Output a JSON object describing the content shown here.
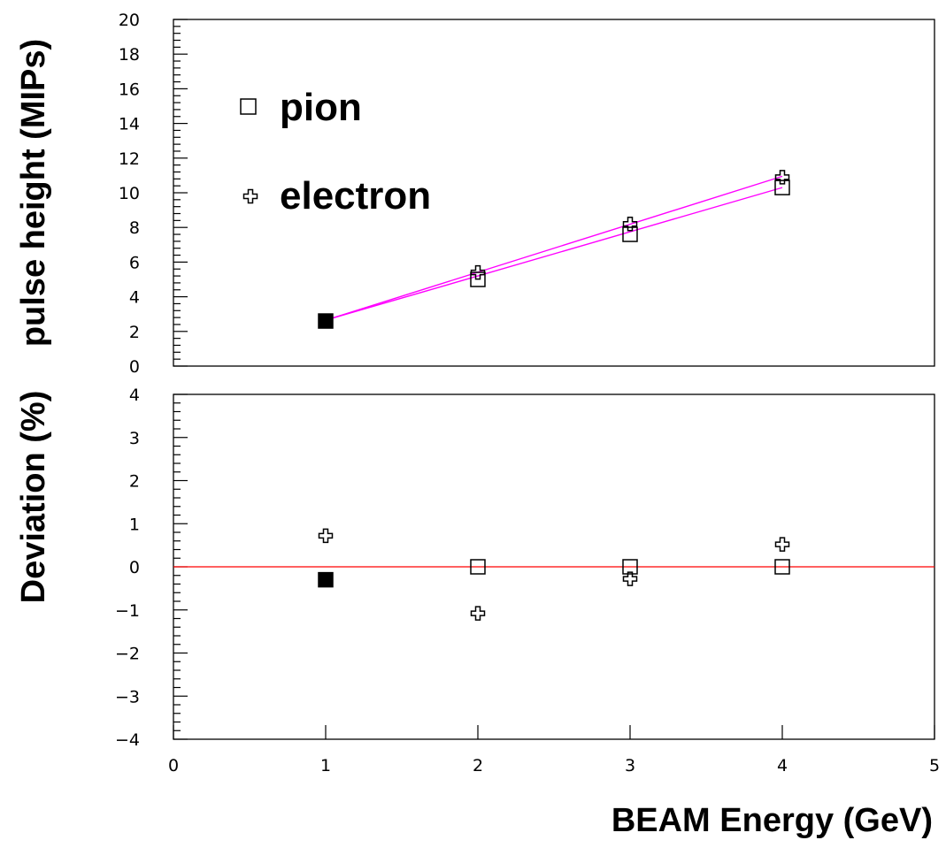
{
  "chart_data": [
    {
      "type": "scatter",
      "ylabel": "pulse height (MIPs)",
      "xlim": [
        0,
        5
      ],
      "ylim": [
        0,
        20
      ],
      "y_ticks": [
        "0",
        "2",
        "4",
        "6",
        "8",
        "10",
        "12",
        "14",
        "16",
        "18",
        "20"
      ],
      "legend": {
        "position": "top-left",
        "entries": [
          {
            "label": "pion",
            "marker": "open-square"
          },
          {
            "label": "electron",
            "marker": "open-cross"
          }
        ]
      },
      "series": [
        {
          "name": "pion",
          "marker": "open-square",
          "x": [
            1,
            2,
            3,
            4
          ],
          "y": [
            2.6,
            5.0,
            7.6,
            10.3
          ],
          "filled_first_point": true
        },
        {
          "name": "electron",
          "marker": "open-cross",
          "x": [
            1,
            2,
            3,
            4
          ],
          "y": [
            2.6,
            5.4,
            8.2,
            10.9
          ]
        }
      ],
      "fits": [
        {
          "series": "pion",
          "x": [
            1,
            4
          ],
          "y": [
            2.65,
            10.3
          ],
          "color": "#ff00ff"
        },
        {
          "series": "electron",
          "x": [
            1,
            4
          ],
          "y": [
            2.65,
            10.95
          ],
          "color": "#ff00ff"
        }
      ]
    },
    {
      "type": "scatter",
      "xlabel": "BEAM Energy (GeV)",
      "ylabel": "Deviation (%)",
      "xlim": [
        0,
        5
      ],
      "ylim": [
        -4,
        4
      ],
      "x_ticks": [
        "0",
        "1",
        "2",
        "3",
        "4",
        "5"
      ],
      "y_ticks": [
        "−4",
        "−3",
        "−2",
        "−1",
        "0",
        "1",
        "2",
        "3",
        "4"
      ],
      "series": [
        {
          "name": "pion",
          "marker": "open-square",
          "x": [
            1,
            2,
            3,
            4
          ],
          "y": [
            -0.3,
            0.0,
            0.0,
            0.0
          ],
          "filled_first_point": true
        },
        {
          "name": "electron",
          "marker": "open-cross",
          "x": [
            1,
            2,
            3,
            4
          ],
          "y": [
            0.72,
            -1.08,
            -0.28,
            0.52
          ]
        }
      ],
      "reference_line": {
        "y": 0,
        "color": "#ff0000"
      }
    }
  ]
}
